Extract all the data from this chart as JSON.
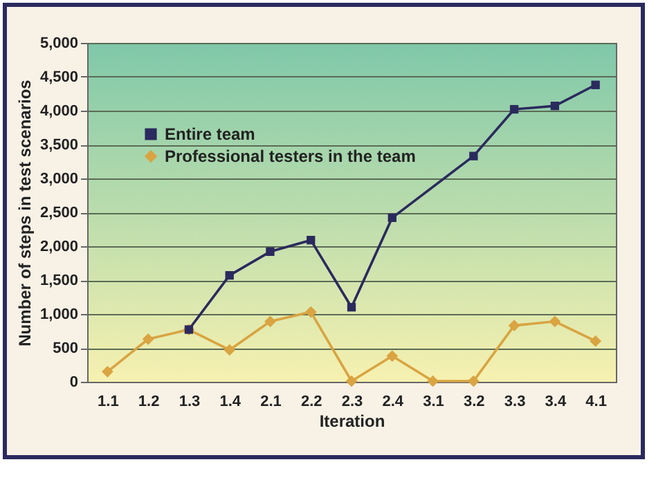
{
  "chart_data": {
    "type": "line",
    "xlabel": "Iteration",
    "ylabel": "Number of steps in test scenarios",
    "categories": [
      "1.1",
      "1.2",
      "1.3",
      "1.4",
      "2.1",
      "2.2",
      "2.3",
      "2.4",
      "3.1",
      "3.2",
      "3.3",
      "3.4",
      "4.1"
    ],
    "series": [
      {
        "name": "Entire team",
        "color": "#2b2a5e",
        "marker": "square",
        "values": [
          null,
          null,
          770,
          1570,
          1920,
          2090,
          1100,
          2420,
          null,
          3330,
          4020,
          4070,
          4380
        ]
      },
      {
        "name": "Professional testers in the team",
        "color": "#d9a441",
        "marker": "diamond",
        "values": [
          150,
          630,
          770,
          470,
          890,
          1030,
          10,
          380,
          10,
          10,
          830,
          890,
          600
        ]
      }
    ],
    "ylim": [
      0,
      5000
    ],
    "yticks": [
      0,
      500,
      {
        "value": 1000,
        "label": "1,000"
      },
      {
        "value": 1500,
        "label": "1,500"
      },
      {
        "value": 2000,
        "label": "2,000"
      },
      {
        "value": 2500,
        "label": "2,500"
      },
      {
        "value": 3000,
        "label": "3,000"
      },
      {
        "value": 3500,
        "label": "3,500"
      },
      {
        "value": 4000,
        "label": "4,000"
      },
      {
        "value": 4500,
        "label": "4,500"
      },
      {
        "value": 5000,
        "label": "5,000"
      }
    ],
    "grid": "y",
    "legend": "top left"
  }
}
